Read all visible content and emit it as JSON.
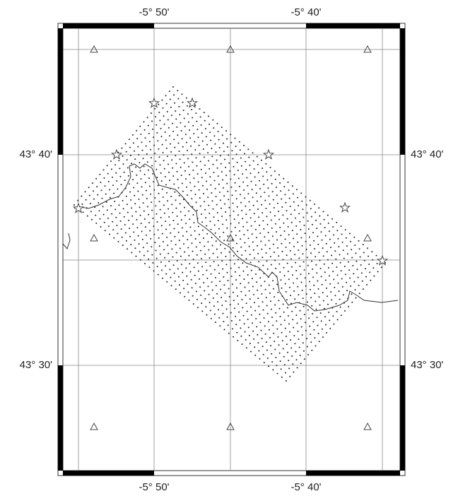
{
  "map": {
    "top_labels": [
      "-5° 50'",
      "-5° 40'"
    ],
    "bottom_labels": [
      "-5° 50'",
      "-5° 40'"
    ],
    "left_labels": [
      "43° 40'",
      "43° 30'"
    ],
    "right_labels": [
      "43° 40'",
      "43° 30'"
    ]
  }
}
